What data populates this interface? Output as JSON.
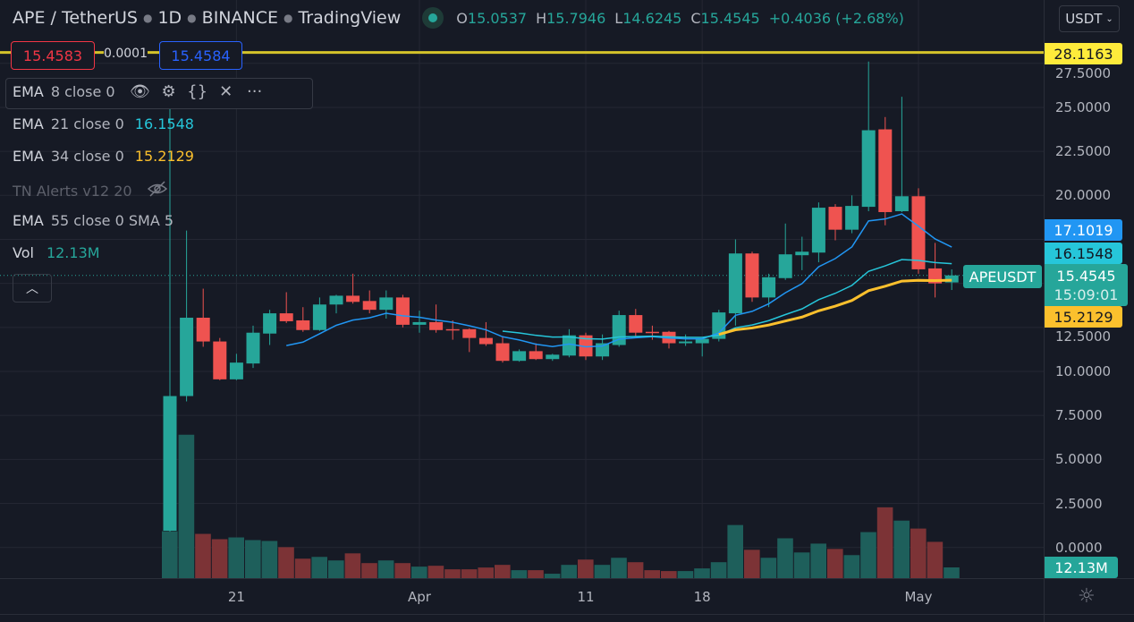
{
  "header": {
    "symbol": "APE / TetherUS",
    "interval": "1D",
    "exchange": "BINANCE",
    "source": "TradingView",
    "status_color": "#26a69a",
    "ohlc": {
      "o_label": "O",
      "o": "15.0537",
      "h_label": "H",
      "h": "15.7946",
      "l_label": "L",
      "l": "14.6245",
      "c_label": "C",
      "c": "15.4545",
      "change": "+0.4036 (+2.68%)"
    }
  },
  "trade": {
    "sell": "15.4583",
    "spread": "0.0001",
    "buy": "15.4584"
  },
  "currency_button": "USDT",
  "legend": [
    {
      "name": "EMA",
      "params": "8 close 0",
      "value": "",
      "color": "#2196f3"
    },
    {
      "name": "EMA",
      "params": "21 close 0",
      "value": "16.1548",
      "color": "#26c6da"
    },
    {
      "name": "EMA",
      "params": "34 close 0",
      "value": "15.2129",
      "color": "#fbc02d"
    },
    {
      "name": "TN Alerts v12 20",
      "params": "",
      "value": "",
      "hidden": true
    },
    {
      "name": "EMA",
      "params": "55 close 0 SMA 5",
      "value": ""
    },
    {
      "name": "Vol",
      "params": "",
      "value": "12.13M",
      "color": "#26a69a"
    }
  ],
  "legend_icons": [
    "eye-icon",
    "gear-icon",
    "braces-icon",
    "close-icon",
    "more-icon"
  ],
  "price_tags": {
    "horizontal_line": "28.1163",
    "ema8": "17.1019",
    "ema21": "16.1548",
    "last": "15.4545",
    "countdown": "15:09:01",
    "ema34": "15.2129",
    "volume": "12.13M",
    "symbol_label": "APEUSDT"
  },
  "colors": {
    "up": "#26a69a",
    "down": "#ef5350",
    "up_vol": "#1e5f5b",
    "down_vol": "#7c3336",
    "ema8": "#2196f3",
    "ema21": "#26c6da",
    "ema34": "#fbc02d",
    "hline": "#d4c32a",
    "background": "#161a25"
  },
  "chart_data": {
    "type": "candlestick",
    "title": "APE / TetherUS · 1D · BINANCE",
    "ylim": [
      0,
      28.5
    ],
    "y_ticks": [
      "27.5000",
      "25.0000",
      "22.5000",
      "20.0000",
      "12.5000",
      "10.0000",
      "7.5000",
      "5.0000",
      "2.5000",
      "0.0000"
    ],
    "x_ticks": [
      {
        "label": "21",
        "date": "Mar 21"
      },
      {
        "label": "Apr",
        "date": "Apr 1"
      },
      {
        "label": "11",
        "date": "Apr 11"
      },
      {
        "label": "18",
        "date": "Apr 18"
      },
      {
        "label": "May",
        "date": "May 1"
      }
    ],
    "grid": true,
    "horizontal_line": 28.1163,
    "volume_unit": "M",
    "indicators": [
      {
        "type": "EMA",
        "period": 8
      },
      {
        "type": "EMA",
        "period": 21
      },
      {
        "type": "EMA",
        "period": 34
      }
    ],
    "candles": [
      {
        "date": "Mar 17",
        "o": 0.95,
        "h": 26.5,
        "l": 0.9,
        "c": 8.6,
        "v": 53
      },
      {
        "date": "Mar 18",
        "o": 8.6,
        "h": 18.0,
        "l": 8.3,
        "c": 13.05,
        "v": 162
      },
      {
        "date": "Mar 19",
        "o": 13.05,
        "h": 14.7,
        "l": 11.4,
        "c": 11.7,
        "v": 50
      },
      {
        "date": "Mar 20",
        "o": 11.7,
        "h": 11.9,
        "l": 9.5,
        "c": 9.55,
        "v": 44
      },
      {
        "date": "Mar 21",
        "o": 9.55,
        "h": 11.0,
        "l": 9.5,
        "c": 10.5,
        "v": 46
      },
      {
        "date": "Mar 22",
        "o": 10.45,
        "h": 12.6,
        "l": 10.2,
        "c": 12.2,
        "v": 43
      },
      {
        "date": "Mar 23",
        "o": 12.15,
        "h": 13.5,
        "l": 11.5,
        "c": 13.3,
        "v": 42
      },
      {
        "date": "Mar 24",
        "o": 13.3,
        "h": 14.5,
        "l": 12.75,
        "c": 12.85,
        "v": 35
      },
      {
        "date": "Mar 25",
        "o": 12.9,
        "h": 13.65,
        "l": 12.25,
        "c": 12.35,
        "v": 22
      },
      {
        "date": "Mar 26",
        "o": 12.35,
        "h": 14.2,
        "l": 12.3,
        "c": 13.8,
        "v": 24
      },
      {
        "date": "Mar 27",
        "o": 13.8,
        "h": 14.35,
        "l": 13.3,
        "c": 14.3,
        "v": 20
      },
      {
        "date": "Mar 28",
        "o": 14.3,
        "h": 15.55,
        "l": 13.85,
        "c": 13.95,
        "v": 28
      },
      {
        "date": "Mar 29",
        "o": 14.0,
        "h": 14.6,
        "l": 13.3,
        "c": 13.5,
        "v": 17
      },
      {
        "date": "Mar 30",
        "o": 13.5,
        "h": 14.6,
        "l": 13.0,
        "c": 14.2,
        "v": 20
      },
      {
        "date": "Mar 31",
        "o": 14.2,
        "h": 14.35,
        "l": 12.5,
        "c": 12.65,
        "v": 17
      },
      {
        "date": "Apr 1",
        "o": 12.65,
        "h": 13.45,
        "l": 12.2,
        "c": 12.8,
        "v": 13
      },
      {
        "date": "Apr 2",
        "o": 12.8,
        "h": 13.8,
        "l": 12.2,
        "c": 12.35,
        "v": 14
      },
      {
        "date": "Apr 3",
        "o": 12.4,
        "h": 12.9,
        "l": 11.8,
        "c": 12.35,
        "v": 10
      },
      {
        "date": "Apr 4",
        "o": 12.4,
        "h": 12.45,
        "l": 11.1,
        "c": 11.9,
        "v": 10
      },
      {
        "date": "Apr 5",
        "o": 11.9,
        "h": 12.8,
        "l": 11.45,
        "c": 11.55,
        "v": 12
      },
      {
        "date": "Apr 6",
        "o": 11.6,
        "h": 12.0,
        "l": 10.5,
        "c": 10.6,
        "v": 15
      },
      {
        "date": "Apr 7",
        "o": 10.6,
        "h": 11.25,
        "l": 10.55,
        "c": 11.15,
        "v": 9
      },
      {
        "date": "Apr 8",
        "o": 11.15,
        "h": 11.6,
        "l": 10.65,
        "c": 10.7,
        "v": 9
      },
      {
        "date": "Apr 9",
        "o": 10.7,
        "h": 11.0,
        "l": 10.6,
        "c": 10.95,
        "v": 5
      },
      {
        "date": "Apr 10",
        "o": 10.9,
        "h": 12.4,
        "l": 10.8,
        "c": 12.05,
        "v": 15
      },
      {
        "date": "Apr 11",
        "o": 12.05,
        "h": 12.2,
        "l": 10.65,
        "c": 10.85,
        "v": 21
      },
      {
        "date": "Apr 12",
        "o": 10.85,
        "h": 12.1,
        "l": 10.65,
        "c": 11.6,
        "v": 15
      },
      {
        "date": "Apr 13",
        "o": 11.5,
        "h": 13.45,
        "l": 11.4,
        "c": 13.2,
        "v": 23
      },
      {
        "date": "Apr 14",
        "o": 13.2,
        "h": 13.55,
        "l": 12.0,
        "c": 12.2,
        "v": 18
      },
      {
        "date": "Apr 15",
        "o": 12.25,
        "h": 12.6,
        "l": 11.8,
        "c": 12.2,
        "v": 9
      },
      {
        "date": "Apr 16",
        "o": 12.25,
        "h": 12.3,
        "l": 11.3,
        "c": 11.6,
        "v": 8
      },
      {
        "date": "Apr 17",
        "o": 11.6,
        "h": 12.1,
        "l": 11.45,
        "c": 11.7,
        "v": 8
      },
      {
        "date": "Apr 18",
        "o": 11.6,
        "h": 11.85,
        "l": 10.85,
        "c": 11.85,
        "v": 11
      },
      {
        "date": "Apr 19",
        "o": 11.85,
        "h": 13.5,
        "l": 11.7,
        "c": 13.35,
        "v": 18
      },
      {
        "date": "Apr 20",
        "o": 13.3,
        "h": 17.5,
        "l": 12.6,
        "c": 16.7,
        "v": 60
      },
      {
        "date": "Apr 21",
        "o": 16.7,
        "h": 16.8,
        "l": 13.95,
        "c": 14.2,
        "v": 32
      },
      {
        "date": "Apr 22",
        "o": 14.2,
        "h": 15.55,
        "l": 13.65,
        "c": 15.35,
        "v": 23
      },
      {
        "date": "Apr 23",
        "o": 15.3,
        "h": 18.4,
        "l": 15.2,
        "c": 16.65,
        "v": 45
      },
      {
        "date": "Apr 24",
        "o": 16.6,
        "h": 17.65,
        "l": 15.75,
        "c": 16.8,
        "v": 29
      },
      {
        "date": "Apr 25",
        "o": 16.75,
        "h": 19.6,
        "l": 16.2,
        "c": 19.3,
        "v": 39
      },
      {
        "date": "Apr 26",
        "o": 19.35,
        "h": 19.5,
        "l": 17.45,
        "c": 18.05,
        "v": 33
      },
      {
        "date": "Apr 27",
        "o": 18.05,
        "h": 20.0,
        "l": 17.85,
        "c": 19.4,
        "v": 26
      },
      {
        "date": "Apr 28",
        "o": 19.35,
        "h": 27.6,
        "l": 19.1,
        "c": 23.7,
        "v": 52
      },
      {
        "date": "Apr 29",
        "o": 23.75,
        "h": 24.45,
        "l": 18.3,
        "c": 19.05,
        "v": 80
      },
      {
        "date": "Apr 30",
        "o": 19.1,
        "h": 25.6,
        "l": 19.05,
        "c": 19.95,
        "v": 65
      },
      {
        "date": "May 1",
        "o": 19.95,
        "h": 20.4,
        "l": 15.55,
        "c": 15.8,
        "v": 56
      },
      {
        "date": "May 2",
        "o": 15.85,
        "h": 17.3,
        "l": 14.2,
        "c": 15.0,
        "v": 41
      },
      {
        "date": "May 3",
        "o": 15.0537,
        "h": 15.7946,
        "l": 14.6245,
        "c": 15.4545,
        "v": 12.13
      }
    ]
  }
}
